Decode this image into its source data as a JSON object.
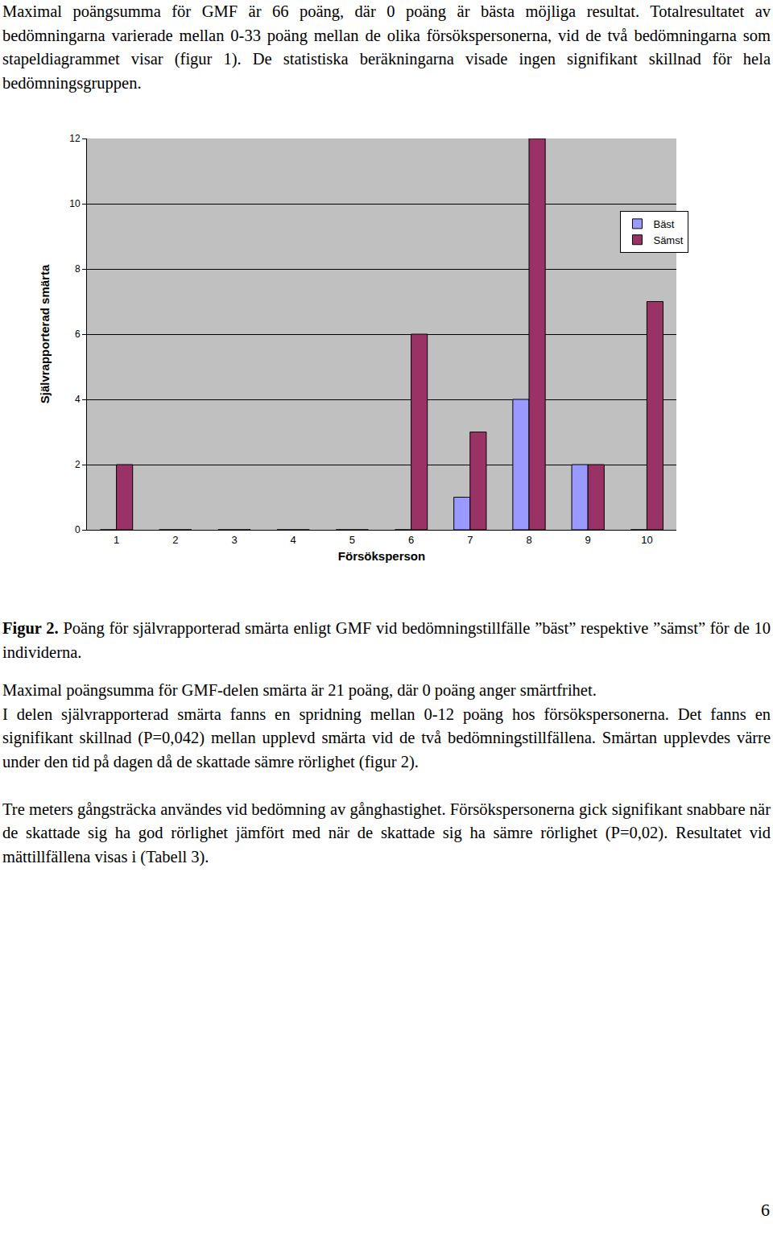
{
  "document": {
    "paragraphs_before": [
      "Maximal poängsumma för GMF är 66 poäng, där 0 poäng är bästa möjliga resultat. Totalresultatet av bedömningarna varierade mellan 0-33 poäng mellan de olika försökspersonerna, vid de två bedömningarna som stapeldiagrammet visar (figur 1). De statistiska beräkningarna visade ingen signifikant skillnad för hela bedömningsgruppen."
    ],
    "figure": {
      "label": "Figur 2.",
      "caption": "Poäng för självrapporterad smärta enligt GMF vid bedömningstillfälle ”bäst” respektive ”sämst” för de 10 individerna."
    },
    "paragraphs_after": [
      [
        "Maximal poängsumma för GMF-delen smärta är 21 poäng, där 0 poäng anger smärtfrihet.",
        "I delen självrapporterad smärta fanns en spridning mellan 0-12 poäng hos försökspersonerna. Det fanns en signifikant skillnad (P=0,042) mellan upplevd smärta vid de två bedömningstillfällena. Smärtan upplevdes värre under den tid på dagen då de skattade sämre rörlighet (figur 2)."
      ],
      [
        "Tre meters gångsträcka användes vid bedömning av gånghastighet. Försökspersonerna gick signifikant snabbare när de skattade sig ha god rörlighet jämfört med när de skattade sig ha sämre rörlighet (P=0,02). Resultatet vid mättillfällena visas i (Tabell 3)."
      ]
    ],
    "page_number": "6"
  },
  "chart_data": {
    "type": "bar",
    "x_label": "Försöksperson",
    "y_label": "Självrapporterad smärta",
    "categories": [
      "1",
      "2",
      "3",
      "4",
      "5",
      "6",
      "7",
      "8",
      "9",
      "10"
    ],
    "series": [
      {
        "name": "Bäst",
        "color": "#9999ff",
        "values": [
          0,
          0,
          0,
          0,
          0,
          0,
          1,
          4,
          2,
          0
        ]
      },
      {
        "name": "Sämst",
        "color": "#993366",
        "values": [
          2,
          0,
          0,
          0,
          0,
          6,
          3,
          12,
          2,
          7
        ]
      }
    ],
    "ylim": [
      0,
      12
    ],
    "yticks": [
      0,
      2,
      4,
      6,
      8,
      10,
      12
    ],
    "grid": true,
    "legend": "upper right"
  }
}
